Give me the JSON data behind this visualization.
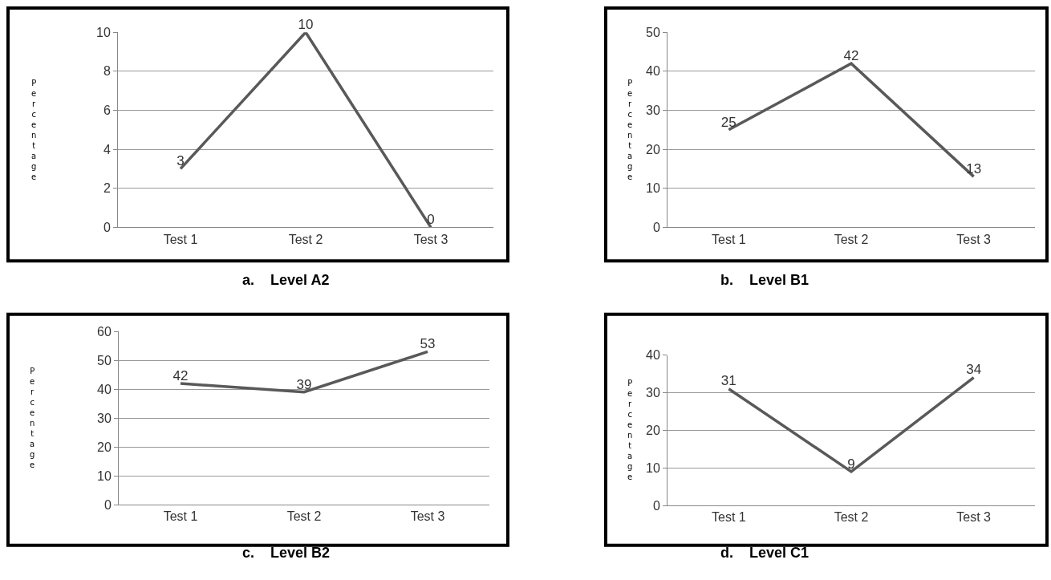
{
  "chart_data": [
    {
      "type": "line",
      "title": "a.    Level A2",
      "ylabel": "Percentage",
      "categories": [
        "Test 1",
        "Test 2",
        "Test 3"
      ],
      "values": [
        3,
        10,
        0
      ],
      "color": "#595959",
      "ylim": [
        0,
        10
      ],
      "yticks": [
        0,
        2,
        4,
        6,
        8,
        10
      ],
      "grid": "y",
      "data_labels": true,
      "marker": "none",
      "legend": false
    },
    {
      "type": "line",
      "title": "b.    Level B1",
      "ylabel": "Percentage",
      "categories": [
        "Test 1",
        "Test 2",
        "Test 3"
      ],
      "values": [
        25,
        42,
        13
      ],
      "color": "#595959",
      "ylim": [
        0,
        50
      ],
      "yticks": [
        0,
        10,
        20,
        30,
        40,
        50
      ],
      "grid": "y",
      "data_labels": true,
      "marker": "none",
      "legend": false
    },
    {
      "type": "line",
      "title": "c.    Level B2",
      "ylabel": "Percentage",
      "categories": [
        "Test 1",
        "Test 2",
        "Test 3"
      ],
      "values": [
        42,
        39,
        53
      ],
      "color": "#595959",
      "ylim": [
        0,
        60
      ],
      "yticks": [
        0,
        10,
        20,
        30,
        40,
        50,
        60
      ],
      "grid": "y",
      "data_labels": true,
      "marker": "none",
      "legend": false
    },
    {
      "type": "line",
      "title": "d.    Level C1",
      "ylabel": "Percentage",
      "categories": [
        "Test 1",
        "Test 2",
        "Test 3"
      ],
      "values": [
        31,
        9,
        34
      ],
      "color": "#595959",
      "ylim": [
        0,
        40
      ],
      "yticks": [
        0,
        10,
        20,
        30,
        40
      ],
      "grid": "y",
      "data_labels": true,
      "marker": "none",
      "legend": false
    }
  ]
}
